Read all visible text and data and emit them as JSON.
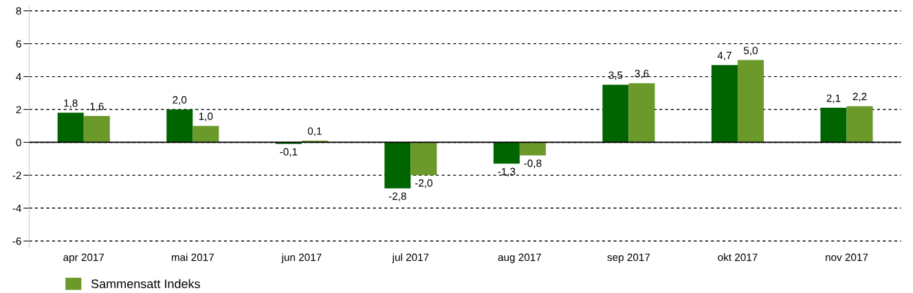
{
  "chart_data": {
    "type": "bar",
    "categories": [
      "apr 2017",
      "mai 2017",
      "jun 2017",
      "jul 2017",
      "aug 2017",
      "sep 2017",
      "okt 2017",
      "nov 2017"
    ],
    "series": [
      {
        "color": "#006400",
        "values": [
          1.8,
          2.0,
          -0.1,
          -2.8,
          -1.3,
          3.5,
          4.7,
          2.1
        ],
        "value_labels": [
          "1,8",
          "2,0",
          "-0,1",
          "-2,8",
          "-1,3",
          "3,5",
          "4,7",
          "2,1"
        ]
      },
      {
        "name": "Sammensatt Indeks",
        "color": "#6b9a2a",
        "values": [
          1.6,
          1.0,
          0.1,
          -2.0,
          -0.8,
          3.6,
          5.0,
          2.2
        ],
        "value_labels": [
          "1,6",
          "1,0",
          "0,1",
          "-2,0",
          "-0,8",
          "3,6",
          "5,0",
          "2,2"
        ]
      }
    ],
    "ylim": [
      -6.4,
      8.3
    ],
    "yticks": [
      -6,
      -4,
      -2,
      0,
      2,
      4,
      6,
      8
    ],
    "ref_lines": [
      {
        "axis": "y",
        "value": 0,
        "color": "#000000",
        "line_style": "solid"
      }
    ],
    "grid": "y",
    "legend": "bottom left"
  }
}
